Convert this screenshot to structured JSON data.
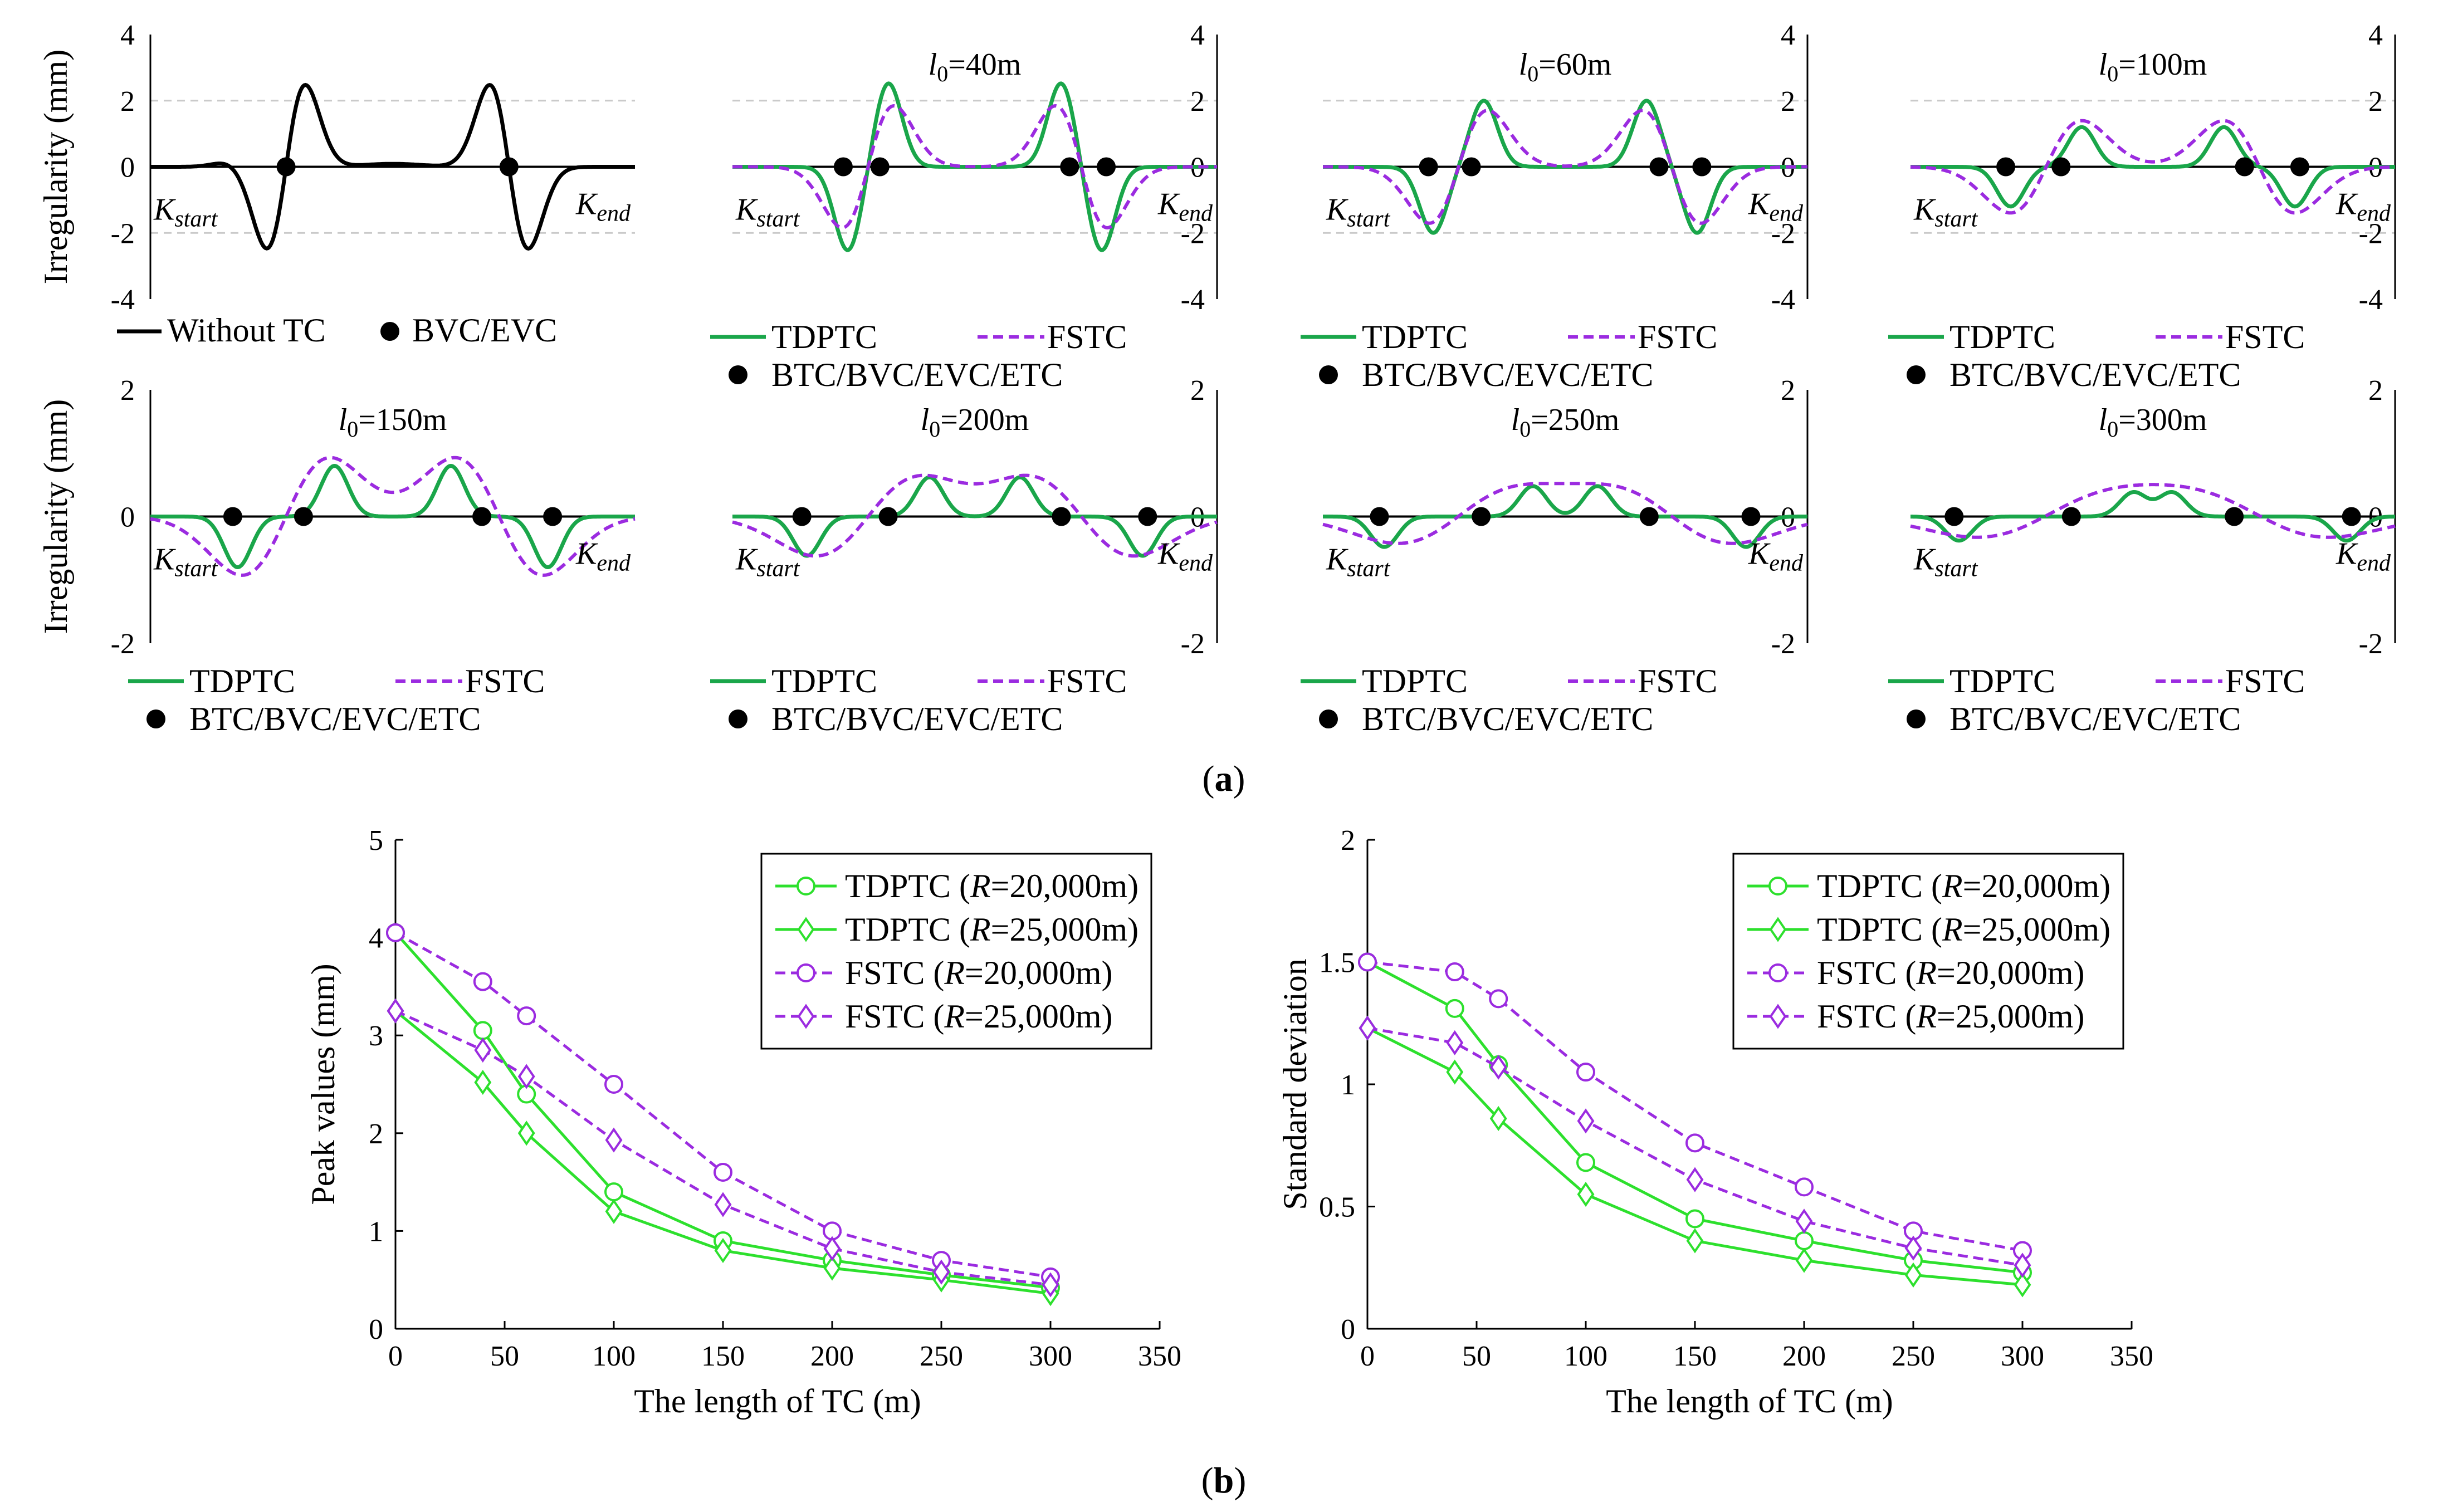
{
  "captions": {
    "a": "a",
    "b": "b"
  },
  "panel_a": {
    "ylabel": "Irregularity (mm)",
    "kstart": {
      "main": "K",
      "sub": "start"
    },
    "kend": {
      "main": "K",
      "sub": "end"
    },
    "legend_without": [
      "Without TC",
      "BVC/EVC"
    ],
    "legend_with": [
      "TDPTC",
      "FSTC",
      "BTC/BVC/EVC/ETC"
    ]
  },
  "chart_data": [
    {
      "type": "line",
      "title": "",
      "params": {
        "l0": 0,
        "amp": 3.0
      },
      "ylim": [
        -4,
        4
      ],
      "yticks": [
        "4",
        "2",
        "0",
        "-2",
        "-4"
      ],
      "series": [
        {
          "name": "Without TC",
          "color": "#000000"
        }
      ],
      "markers_name": "BVC/EVC"
    },
    {
      "type": "line",
      "title": "l0=40m",
      "title_parts": {
        "var": "l",
        "sub": "0",
        "rest": "=40m"
      },
      "params": {
        "l0": 40,
        "green": 2.55,
        "purple": 2.8
      },
      "ylim": [
        -4,
        4
      ],
      "yticks": [
        "4",
        "2",
        "0",
        "-2",
        "-4"
      ],
      "series": [
        {
          "name": "TDPTC",
          "color": "#1aa64a"
        },
        {
          "name": "FSTC",
          "color": "#9b2be0"
        }
      ],
      "markers_name": "BTC/BVC/EVC/ETC"
    },
    {
      "type": "line",
      "title": "l0=60m",
      "title_parts": {
        "var": "l",
        "sub": "0",
        "rest": "=60m"
      },
      "params": {
        "l0": 60,
        "green": 2.0,
        "purple": 2.5
      },
      "ylim": [
        -4,
        4
      ],
      "yticks": [
        "4",
        "2",
        "0",
        "-2",
        "-4"
      ],
      "series": [
        {
          "name": "TDPTC",
          "color": "#1aa64a"
        },
        {
          "name": "FSTC",
          "color": "#9b2be0"
        }
      ],
      "markers_name": "BTC/BVC/EVC/ETC"
    },
    {
      "type": "line",
      "title": "l0=100m",
      "title_parts": {
        "var": "l",
        "sub": "0",
        "rest": "=100m"
      },
      "params": {
        "l0": 100,
        "green": 1.2,
        "purple": 1.95
      },
      "ylim": [
        -4,
        4
      ],
      "yticks": [
        "4",
        "2",
        "0",
        "-2",
        "-4"
      ],
      "series": [
        {
          "name": "TDPTC",
          "color": "#1aa64a"
        },
        {
          "name": "FSTC",
          "color": "#9b2be0"
        }
      ],
      "markers_name": "BTC/BVC/EVC/ETC"
    },
    {
      "type": "line",
      "title": "l0=150m",
      "title_parts": {
        "var": "l",
        "sub": "0",
        "rest": "=150m"
      },
      "params": {
        "l0": 150,
        "green": 0.8,
        "purple": 1.25
      },
      "ylim": [
        -2,
        2
      ],
      "yticks": [
        "2",
        "0",
        "-2"
      ],
      "series": [
        {
          "name": "TDPTC",
          "color": "#1aa64a"
        },
        {
          "name": "FSTC",
          "color": "#9b2be0"
        }
      ],
      "markers_name": "BTC/BVC/EVC/ETC"
    },
    {
      "type": "line",
      "title": "l0=200m",
      "title_parts": {
        "var": "l",
        "sub": "0",
        "rest": "=200m"
      },
      "params": {
        "l0": 200,
        "green": 0.62,
        "purple": 0.82
      },
      "ylim": [
        -2,
        2
      ],
      "yticks": [
        "2",
        "0",
        "-2"
      ],
      "series": [
        {
          "name": "TDPTC",
          "color": "#1aa64a"
        },
        {
          "name": "FSTC",
          "color": "#9b2be0"
        }
      ],
      "markers_name": "BTC/BVC/EVC/ETC"
    },
    {
      "type": "line",
      "title": "l0=250m",
      "title_parts": {
        "var": "l",
        "sub": "0",
        "rest": "=250m"
      },
      "params": {
        "l0": 250,
        "green": 0.48,
        "purple": 0.55
      },
      "ylim": [
        -2,
        2
      ],
      "yticks": [
        "2",
        "0",
        "-2"
      ],
      "series": [
        {
          "name": "TDPTC",
          "color": "#1aa64a"
        },
        {
          "name": "FSTC",
          "color": "#9b2be0"
        }
      ],
      "markers_name": "BTC/BVC/EVC/ETC"
    },
    {
      "type": "line",
      "title": "l0=300m",
      "title_parts": {
        "var": "l",
        "sub": "0",
        "rest": "=300m"
      },
      "params": {
        "l0": 300,
        "green": 0.38,
        "purple": 0.42
      },
      "ylim": [
        -2,
        2
      ],
      "yticks": [
        "2",
        "0",
        "-2"
      ],
      "series": [
        {
          "name": "TDPTC",
          "color": "#1aa64a"
        },
        {
          "name": "FSTC",
          "color": "#9b2be0"
        }
      ],
      "markers_name": "BTC/BVC/EVC/ETC"
    },
    {
      "type": "line",
      "title": "",
      "xlabel": "The length of TC (m)",
      "ylabel": "Peak values (mm)",
      "x": [
        0,
        40,
        60,
        100,
        150,
        200,
        250,
        300
      ],
      "xlim": [
        0,
        350
      ],
      "ylim": [
        0,
        5
      ],
      "xticks": [
        "0",
        "50",
        "100",
        "150",
        "200",
        "250",
        "300",
        "350"
      ],
      "yticks": [
        "0",
        "1",
        "2",
        "3",
        "4",
        "5"
      ],
      "legend_position": "top-right",
      "series": [
        {
          "name": "TDPTC (R=20,000m)",
          "prefix": "TDPTC (",
          "italic": "R",
          "suffix": "=20,000m)",
          "color": "#2de02d",
          "dash": "solid",
          "marker": "circle",
          "values": [
            4.05,
            3.05,
            2.4,
            1.4,
            0.9,
            0.7,
            0.55,
            0.42
          ]
        },
        {
          "name": "TDPTC (R=25,000m)",
          "prefix": "TDPTC (",
          "italic": "R",
          "suffix": "=25,000m)",
          "color": "#2de02d",
          "dash": "solid",
          "marker": "diamond",
          "values": [
            3.25,
            2.52,
            2.0,
            1.2,
            0.8,
            0.62,
            0.5,
            0.36
          ]
        },
        {
          "name": "FSTC (R=20,000m)",
          "prefix": "FSTC (",
          "italic": "R",
          "suffix": "=20,000m)",
          "color": "#9b2be0",
          "dash": "dashed",
          "marker": "circle",
          "values": [
            4.05,
            3.55,
            3.2,
            2.5,
            1.6,
            1.0,
            0.7,
            0.53
          ]
        },
        {
          "name": "FSTC (R=25,000m)",
          "prefix": "FSTC (",
          "italic": "R",
          "suffix": "=25,000m)",
          "color": "#9b2be0",
          "dash": "dashed",
          "marker": "diamond",
          "values": [
            3.25,
            2.85,
            2.58,
            1.93,
            1.27,
            0.82,
            0.58,
            0.45
          ]
        }
      ]
    },
    {
      "type": "line",
      "title": "",
      "xlabel": "The length of TC (m)",
      "ylabel": "Standard deviation",
      "x": [
        0,
        40,
        60,
        100,
        150,
        200,
        250,
        300
      ],
      "xlim": [
        0,
        350
      ],
      "ylim": [
        0,
        2
      ],
      "xticks": [
        "0",
        "50",
        "100",
        "150",
        "200",
        "250",
        "300",
        "350"
      ],
      "yticks": [
        "0",
        "0.5",
        "1",
        "1.5",
        "2"
      ],
      "legend_position": "top-right",
      "series": [
        {
          "name": "TDPTC (R=20,000m)",
          "prefix": "TDPTC (",
          "italic": "R",
          "suffix": "=20,000m)",
          "color": "#2de02d",
          "dash": "solid",
          "marker": "circle",
          "values": [
            1.5,
            1.31,
            1.08,
            0.68,
            0.45,
            0.36,
            0.28,
            0.23
          ]
        },
        {
          "name": "TDPTC (R=25,000m)",
          "prefix": "TDPTC (",
          "italic": "R",
          "suffix": "=25,000m)",
          "color": "#2de02d",
          "dash": "solid",
          "marker": "diamond",
          "values": [
            1.23,
            1.05,
            0.86,
            0.55,
            0.36,
            0.28,
            0.22,
            0.18
          ]
        },
        {
          "name": "FSTC (R=20,000m)",
          "prefix": "FSTC (",
          "italic": "R",
          "suffix": "=20,000m)",
          "color": "#9b2be0",
          "dash": "dashed",
          "marker": "circle",
          "values": [
            1.5,
            1.46,
            1.35,
            1.05,
            0.76,
            0.58,
            0.4,
            0.32
          ]
        },
        {
          "name": "FSTC (R=25,000m)",
          "prefix": "FSTC (",
          "italic": "R",
          "suffix": "=25,000m)",
          "color": "#9b2be0",
          "dash": "dashed",
          "marker": "diamond",
          "values": [
            1.23,
            1.17,
            1.07,
            0.85,
            0.61,
            0.44,
            0.33,
            0.26
          ]
        }
      ]
    }
  ]
}
